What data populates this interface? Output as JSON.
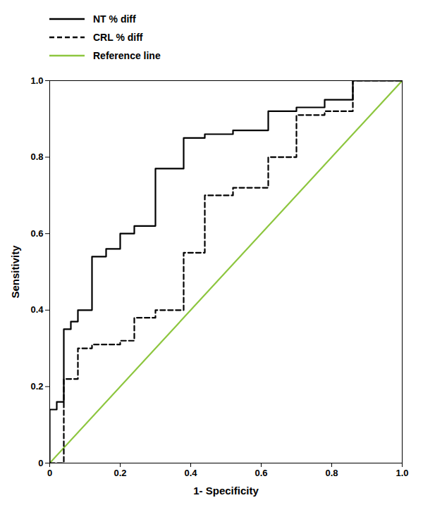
{
  "chart_data": {
    "type": "line",
    "xlabel": "1- Specificity",
    "ylabel": "Sensitivity",
    "xlim": [
      0,
      1.0
    ],
    "ylim": [
      0,
      1.0
    ],
    "xticks": [
      0,
      0.2,
      0.4,
      0.6,
      0.8,
      {
        "value": 1.0,
        "label": "1.0"
      }
    ],
    "yticks": [
      0,
      0.2,
      0.4,
      0.6,
      0.8,
      {
        "value": 1.0,
        "label": "1.0"
      }
    ],
    "grid": false,
    "legend": "top",
    "series": [
      {
        "name": "NT % diff",
        "color": "#000000",
        "line_style": "solid",
        "x": [
          0.0,
          0.0,
          0.02,
          0.02,
          0.04,
          0.04,
          0.06,
          0.06,
          0.08,
          0.08,
          0.12,
          0.12,
          0.16,
          0.16,
          0.2,
          0.2,
          0.24,
          0.24,
          0.3,
          0.3,
          0.38,
          0.38,
          0.44,
          0.44,
          0.52,
          0.52,
          0.62,
          0.62,
          0.7,
          0.7,
          0.78,
          0.78,
          0.86,
          0.86,
          1.0,
          1.0
        ],
        "values": [
          0.0,
          0.14,
          0.14,
          0.16,
          0.16,
          0.35,
          0.35,
          0.37,
          0.37,
          0.4,
          0.4,
          0.54,
          0.54,
          0.56,
          0.56,
          0.6,
          0.6,
          0.62,
          0.62,
          0.77,
          0.77,
          0.85,
          0.85,
          0.86,
          0.86,
          0.87,
          0.87,
          0.92,
          0.92,
          0.93,
          0.93,
          0.95,
          0.95,
          1.0,
          1.0,
          1.0
        ]
      },
      {
        "name": "CRL % diff",
        "color": "#000000",
        "line_style": "dashed",
        "x": [
          0.0,
          0.0,
          0.04,
          0.04,
          0.08,
          0.08,
          0.12,
          0.12,
          0.2,
          0.2,
          0.24,
          0.24,
          0.3,
          0.3,
          0.38,
          0.38,
          0.44,
          0.44,
          0.52,
          0.52,
          0.62,
          0.62,
          0.7,
          0.7,
          0.78,
          0.78,
          0.86,
          0.86,
          1.0,
          1.0
        ],
        "values": [
          0.0,
          0.0,
          0.0,
          0.22,
          0.22,
          0.3,
          0.3,
          0.31,
          0.31,
          0.32,
          0.32,
          0.38,
          0.38,
          0.4,
          0.4,
          0.55,
          0.55,
          0.7,
          0.7,
          0.72,
          0.72,
          0.8,
          0.8,
          0.91,
          0.91,
          0.92,
          0.92,
          1.0,
          1.0,
          1.0
        ]
      },
      {
        "name": "Reference line",
        "color": "#8dc63f",
        "line_style": "solid",
        "x": [
          0.0,
          1.0
        ],
        "values": [
          0.0,
          1.0
        ]
      }
    ]
  }
}
